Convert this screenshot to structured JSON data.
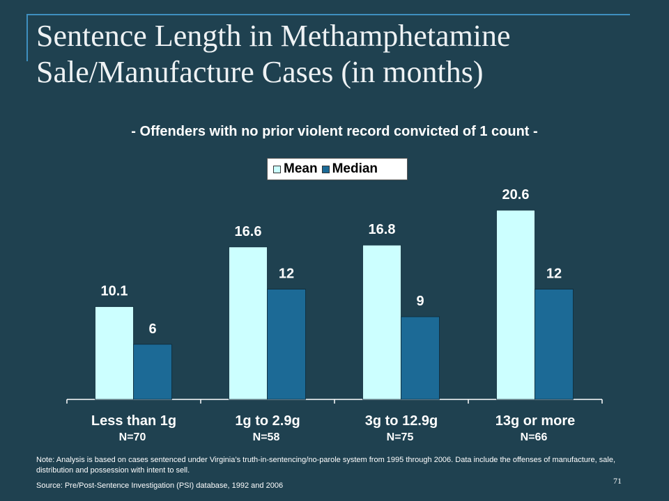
{
  "slide": {
    "title": "Sentence Length in Methamphetamine Sale/Manufacture Cases (in months)",
    "note": "Note:  Analysis is based on cases sentenced under Virginia’s truth-in-sentencing/no-parole system from 1995 through 2006.  Data include the offenses of manufacture, sale, distribution and possession with intent to sell.",
    "source": "Source:  Pre/Post-Sentence Investigation (PSI) database, 1992 and 2006",
    "page_number": "71"
  },
  "chart_data": {
    "type": "bar",
    "title": "- Offenders with no prior violent  record convicted of 1 count -",
    "categories": [
      "Less than 1g",
      "1g to 2.9g",
      "3g to 12.9g",
      "13g or more"
    ],
    "category_counts": [
      "N=70",
      "N=58",
      "N=75",
      "N=66"
    ],
    "series": [
      {
        "name": "Mean",
        "values": [
          10.1,
          16.6,
          16.8,
          20.6
        ],
        "color": "#ccffff"
      },
      {
        "name": "Median",
        "values": [
          6,
          12,
          9,
          12
        ],
        "color": "#1c6a96"
      }
    ],
    "ylim": [
      0,
      25
    ],
    "grid": false,
    "legend_position": "top-center",
    "xlabel": "",
    "ylabel": ""
  }
}
